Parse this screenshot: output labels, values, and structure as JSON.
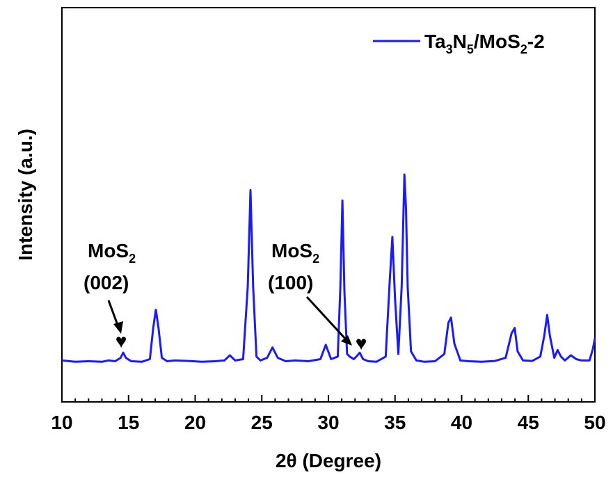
{
  "chart_data": {
    "type": "line",
    "title": "",
    "xlabel": "2θ (Degree)",
    "ylabel": "Intensity (a.u.)",
    "xlim": [
      10,
      50
    ],
    "ylim": [
      0,
      100
    ],
    "x_ticks": [
      "10",
      "15",
      "20",
      "25",
      "30",
      "35",
      "40",
      "45",
      "50"
    ],
    "y_ticks_visible": false,
    "grid": false,
    "legend_position": "top-right",
    "colors": {
      "series": "#1a1aff",
      "axis": "#000000",
      "marker": "#000000"
    },
    "series": [
      {
        "name": "Ta3N5/MoS2-2",
        "name_parts": {
          "a": "Ta",
          "a_sub": "3",
          "b": "N",
          "b_sub": "5",
          "c": "/MoS",
          "c_sub": "2",
          "d": "-2"
        },
        "x": [
          10.0,
          11.0,
          12.0,
          13.0,
          13.5,
          14.0,
          14.4,
          14.6,
          14.8,
          15.2,
          16.0,
          16.6,
          16.85,
          17.05,
          17.25,
          17.5,
          17.9,
          18.5,
          19.5,
          20.5,
          21.5,
          22.2,
          22.6,
          23.0,
          23.6,
          23.95,
          24.15,
          24.35,
          24.6,
          24.9,
          25.4,
          25.8,
          26.2,
          26.8,
          27.5,
          28.5,
          29.4,
          29.8,
          30.2,
          30.7,
          30.9,
          31.05,
          31.2,
          31.4,
          31.6,
          31.9,
          32.1,
          32.35,
          32.6,
          33.0,
          33.6,
          34.3,
          34.6,
          34.8,
          35.0,
          35.25,
          35.5,
          35.7,
          35.82,
          35.95,
          36.2,
          36.6,
          37.2,
          38.0,
          38.7,
          39.0,
          39.2,
          39.45,
          39.9,
          40.5,
          41.5,
          42.5,
          43.3,
          43.75,
          43.98,
          44.2,
          44.6,
          45.3,
          45.9,
          46.2,
          46.42,
          46.62,
          46.95,
          47.2,
          47.45,
          47.75,
          48.2,
          48.6,
          49.0,
          49.6,
          49.85,
          50.0
        ],
        "y": [
          1.5,
          1.0,
          1.2,
          1.0,
          1.5,
          1.2,
          2.5,
          4.5,
          2.5,
          1.2,
          1.0,
          2.0,
          14.0,
          21.0,
          14.0,
          2.5,
          1.2,
          1.5,
          1.3,
          1.0,
          1.2,
          1.5,
          3.5,
          1.5,
          2.0,
          30.0,
          67.0,
          30.0,
          3.0,
          1.5,
          2.5,
          6.5,
          2.5,
          1.2,
          1.5,
          1.2,
          2.0,
          7.5,
          2.0,
          3.0,
          30.0,
          63.0,
          28.0,
          4.0,
          3.0,
          2.0,
          3.0,
          4.5,
          2.0,
          1.2,
          1.0,
          3.0,
          32.0,
          49.0,
          25.0,
          4.0,
          30.0,
          73.0,
          60.0,
          30.0,
          5.0,
          1.5,
          1.0,
          1.2,
          4.0,
          16.0,
          18.0,
          8.0,
          1.5,
          1.2,
          1.0,
          1.3,
          2.5,
          12.0,
          14.0,
          5.0,
          1.5,
          1.3,
          3.0,
          11.0,
          19.0,
          11.0,
          2.5,
          5.5,
          3.0,
          1.5,
          3.5,
          2.0,
          1.5,
          1.5,
          6.0,
          10.0
        ]
      }
    ],
    "annotations": [
      {
        "label_main": "MoS",
        "label_sub": "2",
        "label_hkl": "(002)",
        "marker": "♥",
        "x": 14.6
      },
      {
        "label_main": "MoS",
        "label_sub": "2",
        "label_hkl": "(100)",
        "marker": "♥",
        "x": 32.4
      }
    ]
  }
}
